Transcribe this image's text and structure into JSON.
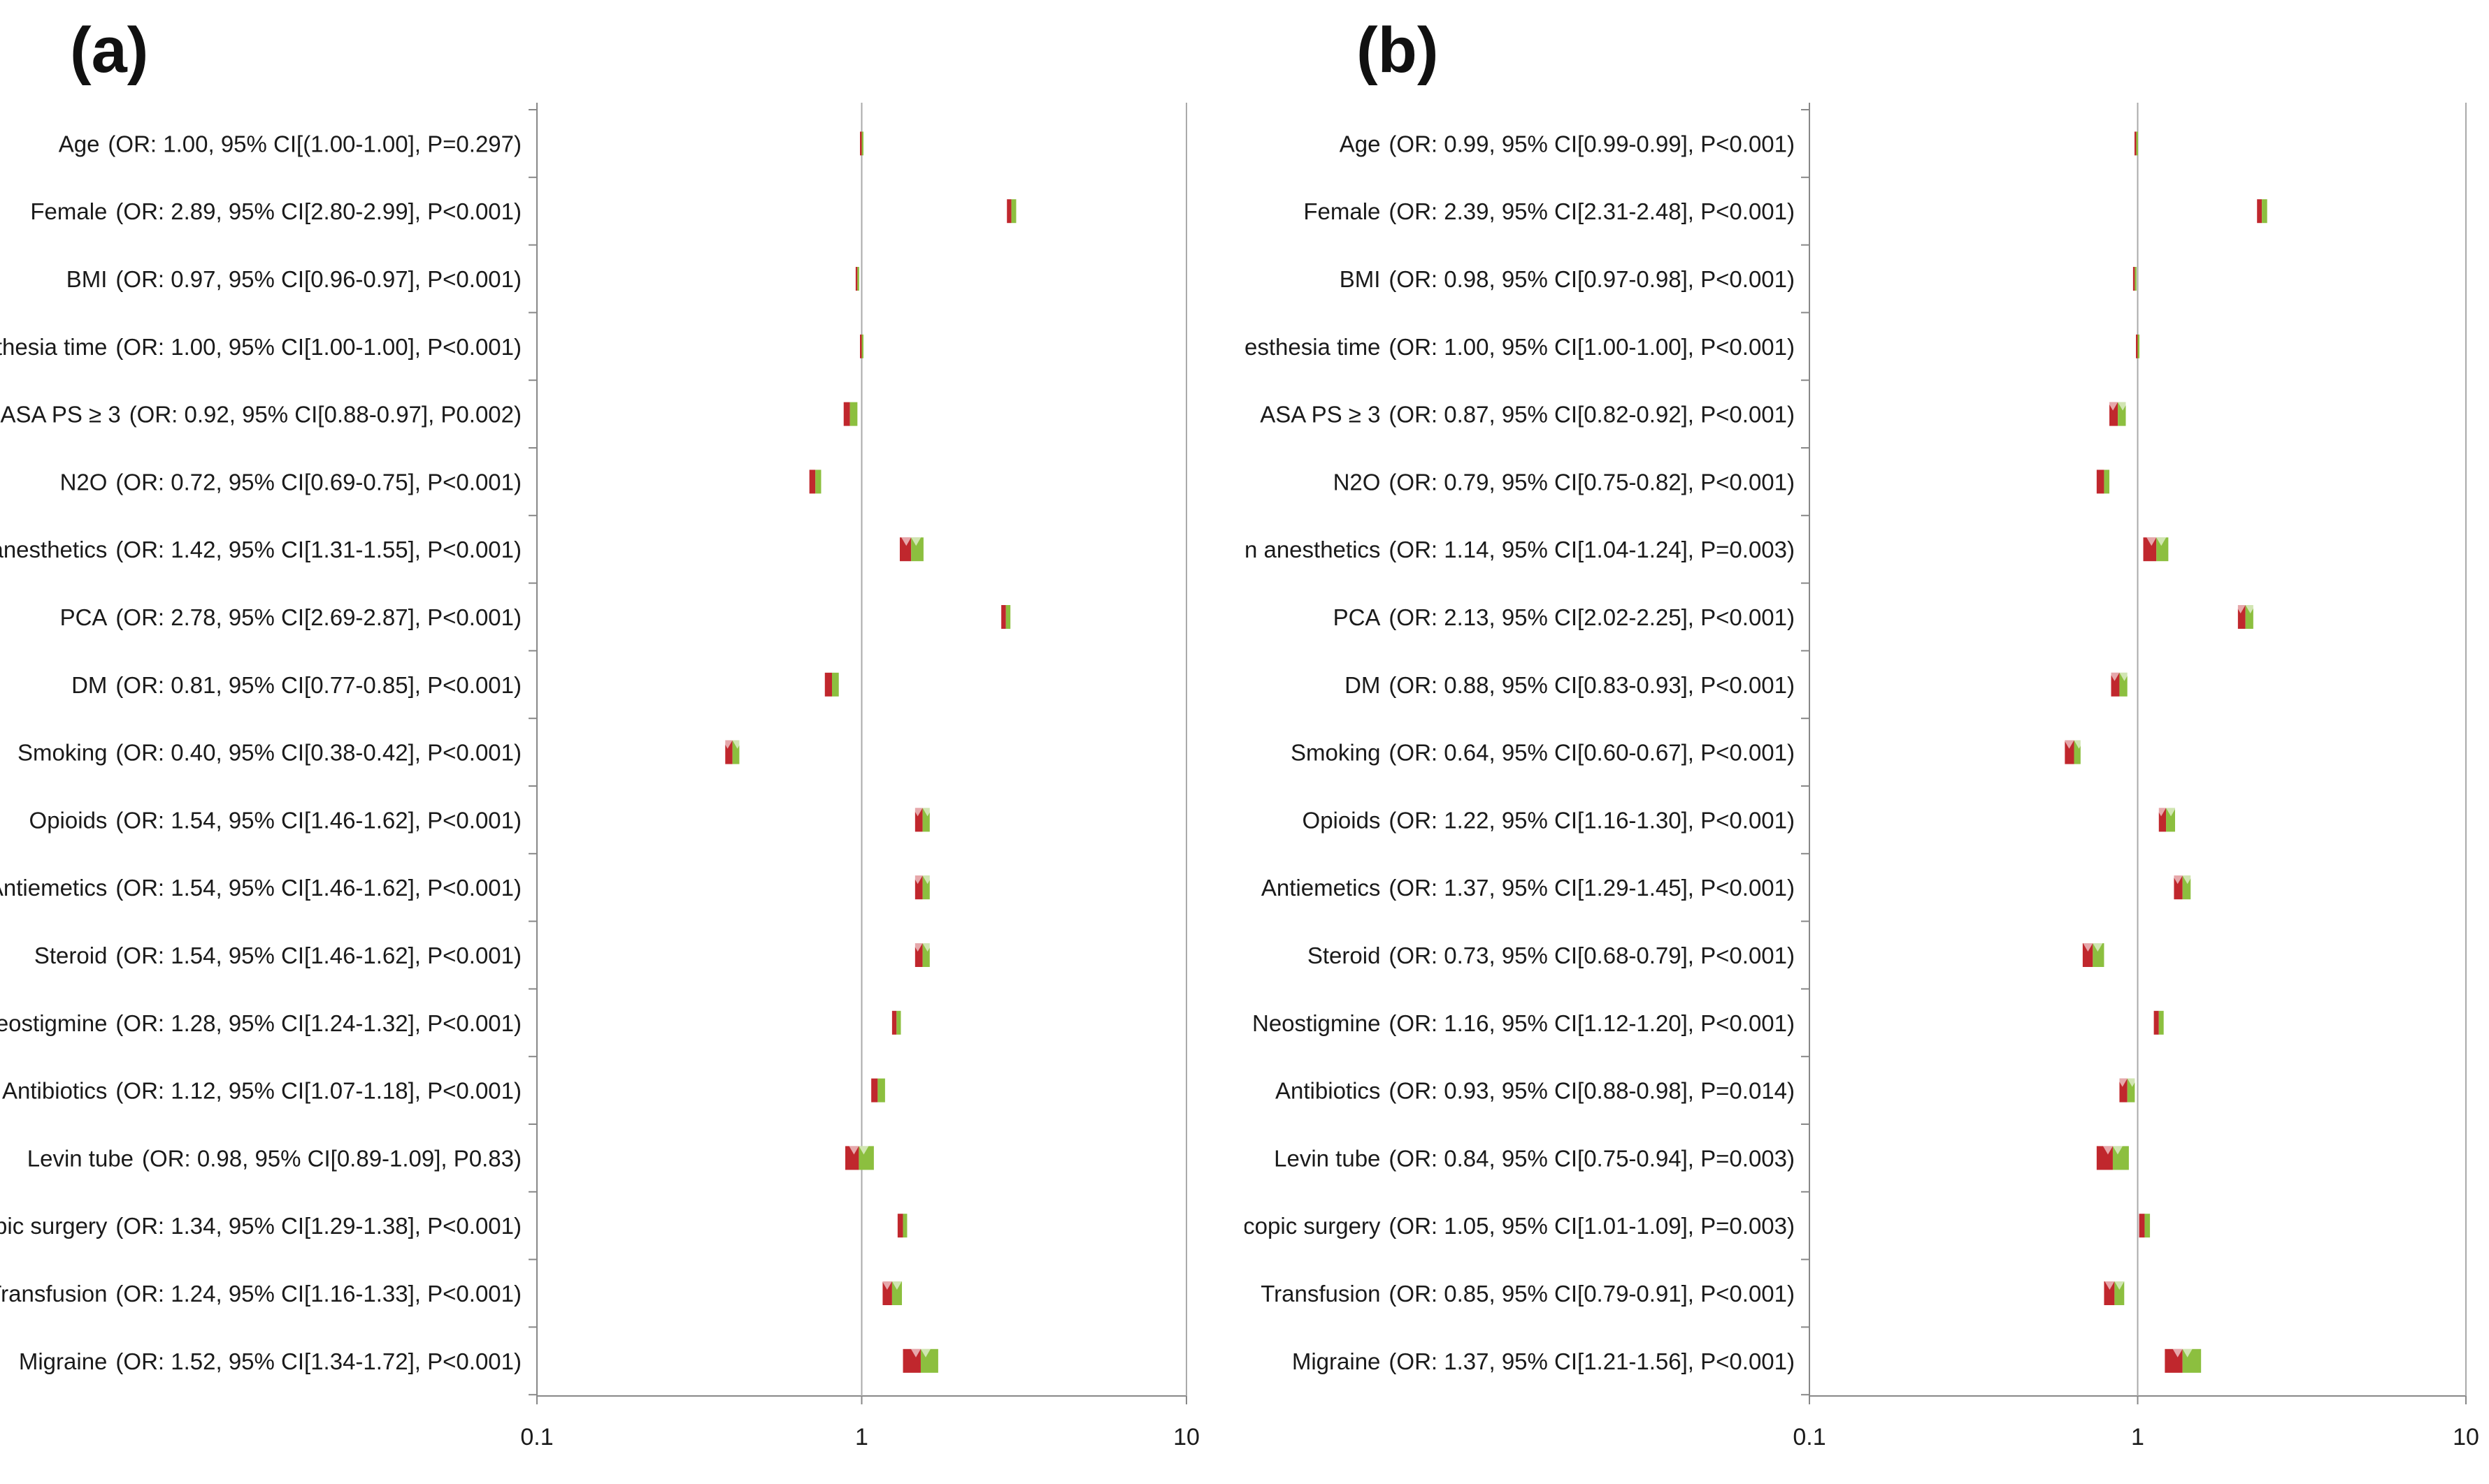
{
  "panels": [
    {
      "id": "a",
      "label": "(a)"
    },
    {
      "id": "b",
      "label": "(b)"
    }
  ],
  "chart_data": [
    {
      "type": "forest",
      "panel": "(a)",
      "x_scale": "log",
      "xlim": [
        0.1,
        10
      ],
      "x_ticks": [
        "0.1",
        "1",
        "10"
      ],
      "reference_line": 1,
      "rows": [
        {
          "label": "Age",
          "stats": "(OR: 1.00, 95% CI[(1.00-1.00], P=0.297)",
          "or": 1.0,
          "lo": 1.0,
          "hi": 1.0
        },
        {
          "label": "Female",
          "stats": "(OR: 2.89, 95% CI[2.80-2.99], P<0.001)",
          "or": 2.89,
          "lo": 2.8,
          "hi": 2.99
        },
        {
          "label": "BMI",
          "stats": "(OR: 0.97, 95% CI[0.96-0.97], P<0.001)",
          "or": 0.97,
          "lo": 0.96,
          "hi": 0.97
        },
        {
          "label": "Anesthesia time",
          "stats": "(OR: 1.00, 95% CI[1.00-1.00], P<0.001)",
          "or": 1.0,
          "lo": 1.0,
          "hi": 1.0
        },
        {
          "label": "ASA PS ≥ 3",
          "stats": "(OR: 0.92, 95% CI[0.88-0.97], P0.002)",
          "or": 0.92,
          "lo": 0.88,
          "hi": 0.97
        },
        {
          "label": "N2O",
          "stats": "(OR: 0.72, 95% CI[0.69-0.75], P<0.001)",
          "or": 0.72,
          "lo": 0.69,
          "hi": 0.75
        },
        {
          "label": "Inhalation anesthetics",
          "stats": "(OR: 1.42, 95% CI[1.31-1.55], P<0.001)",
          "or": 1.42,
          "lo": 1.31,
          "hi": 1.55
        },
        {
          "label": "PCA",
          "stats": "(OR: 2.78, 95% CI[2.69-2.87], P<0.001)",
          "or": 2.78,
          "lo": 2.69,
          "hi": 2.87
        },
        {
          "label": "DM",
          "stats": "(OR: 0.81, 95% CI[0.77-0.85], P<0.001)",
          "or": 0.81,
          "lo": 0.77,
          "hi": 0.85
        },
        {
          "label": "Smoking",
          "stats": "(OR: 0.40, 95% CI[0.38-0.42], P<0.001)",
          "or": 0.4,
          "lo": 0.38,
          "hi": 0.42
        },
        {
          "label": "Opioids",
          "stats": "(OR: 1.54, 95% CI[1.46-1.62], P<0.001)",
          "or": 1.54,
          "lo": 1.46,
          "hi": 1.62
        },
        {
          "label": "Antiemetics",
          "stats": "(OR: 1.54, 95% CI[1.46-1.62], P<0.001)",
          "or": 1.54,
          "lo": 1.46,
          "hi": 1.62
        },
        {
          "label": "Steroid",
          "stats": "(OR: 1.54, 95% CI[1.46-1.62], P<0.001)",
          "or": 1.54,
          "lo": 1.46,
          "hi": 1.62
        },
        {
          "label": "Neostigmine",
          "stats": "(OR: 1.28, 95% CI[1.24-1.32], P<0.001)",
          "or": 1.28,
          "lo": 1.24,
          "hi": 1.32
        },
        {
          "label": "Antibiotics",
          "stats": "(OR: 1.12, 95% CI[1.07-1.18], P<0.001)",
          "or": 1.12,
          "lo": 1.07,
          "hi": 1.18
        },
        {
          "label": "Levin tube",
          "stats": "(OR: 0.98, 95% CI[0.89-1.09], P0.83)",
          "or": 0.98,
          "lo": 0.89,
          "hi": 1.09
        },
        {
          "label": "Laparoscopic surgery",
          "stats": "(OR: 1.34, 95% CI[1.29-1.38], P<0.001)",
          "or": 1.34,
          "lo": 1.29,
          "hi": 1.38
        },
        {
          "label": "Transfusion",
          "stats": "(OR: 1.24, 95% CI[1.16-1.33], P<0.001)",
          "or": 1.24,
          "lo": 1.16,
          "hi": 1.33
        },
        {
          "label": "Migraine",
          "stats": "(OR: 1.52, 95% CI[1.34-1.72], P<0.001)",
          "or": 1.52,
          "lo": 1.34,
          "hi": 1.72
        }
      ]
    },
    {
      "type": "forest",
      "panel": "(b)",
      "x_scale": "log",
      "xlim": [
        0.1,
        10
      ],
      "x_ticks": [
        "0.1",
        "1",
        "10"
      ],
      "reference_line": 1,
      "rows": [
        {
          "label": "Age",
          "stats": "(OR: 0.99, 95% CI[0.99-0.99], P<0.001)",
          "or": 0.99,
          "lo": 0.99,
          "hi": 0.99
        },
        {
          "label": "Female",
          "stats": "(OR: 2.39, 95% CI[2.31-2.48], P<0.001)",
          "or": 2.39,
          "lo": 2.31,
          "hi": 2.48
        },
        {
          "label": "BMI",
          "stats": "(OR: 0.98, 95% CI[0.97-0.98], P<0.001)",
          "or": 0.98,
          "lo": 0.97,
          "hi": 0.98
        },
        {
          "label": "Anesthesia time",
          "stats": "(OR: 1.00, 95% CI[1.00-1.00], P<0.001)",
          "or": 1.0,
          "lo": 1.0,
          "hi": 1.0
        },
        {
          "label": "ASA PS ≥ 3",
          "stats": "(OR: 0.87, 95% CI[0.82-0.92], P<0.001)",
          "or": 0.87,
          "lo": 0.82,
          "hi": 0.92
        },
        {
          "label": "N2O",
          "stats": "(OR: 0.79, 95% CI[0.75-0.82], P<0.001)",
          "or": 0.79,
          "lo": 0.75,
          "hi": 0.82
        },
        {
          "label": "Inhalation anesthetics",
          "stats": "(OR: 1.14, 95% CI[1.04-1.24], P=0.003)",
          "or": 1.14,
          "lo": 1.04,
          "hi": 1.24
        },
        {
          "label": "PCA",
          "stats": "(OR: 2.13, 95% CI[2.02-2.25], P<0.001)",
          "or": 2.13,
          "lo": 2.02,
          "hi": 2.25
        },
        {
          "label": "DM",
          "stats": "(OR: 0.88, 95% CI[0.83-0.93], P<0.001)",
          "or": 0.88,
          "lo": 0.83,
          "hi": 0.93
        },
        {
          "label": "Smoking",
          "stats": "(OR: 0.64, 95% CI[0.60-0.67], P<0.001)",
          "or": 0.64,
          "lo": 0.6,
          "hi": 0.67
        },
        {
          "label": "Opioids",
          "stats": "(OR: 1.22, 95% CI[1.16-1.30], P<0.001)",
          "or": 1.22,
          "lo": 1.16,
          "hi": 1.3
        },
        {
          "label": "Antiemetics",
          "stats": "(OR: 1.37, 95% CI[1.29-1.45], P<0.001)",
          "or": 1.37,
          "lo": 1.29,
          "hi": 1.45
        },
        {
          "label": "Steroid",
          "stats": "(OR: 0.73, 95% CI[0.68-0.79], P<0.001)",
          "or": 0.73,
          "lo": 0.68,
          "hi": 0.79
        },
        {
          "label": "Neostigmine",
          "stats": "(OR: 1.16, 95% CI[1.12-1.20], P<0.001)",
          "or": 1.16,
          "lo": 1.12,
          "hi": 1.2
        },
        {
          "label": "Antibiotics",
          "stats": "(OR: 0.93, 95% CI[0.88-0.98], P=0.014)",
          "or": 0.93,
          "lo": 0.88,
          "hi": 0.98
        },
        {
          "label": "Levin tube",
          "stats": "(OR: 0.84, 95% CI[0.75-0.94], P=0.003)",
          "or": 0.84,
          "lo": 0.75,
          "hi": 0.94
        },
        {
          "label": "Laparoscopic surgery",
          "stats": "(OR: 1.05, 95% CI[1.01-1.09], P=0.003)",
          "or": 1.05,
          "lo": 1.01,
          "hi": 1.09
        },
        {
          "label": "Transfusion",
          "stats": "(OR: 0.85, 95% CI[0.79-0.91], P<0.001)",
          "or": 0.85,
          "lo": 0.79,
          "hi": 0.91
        },
        {
          "label": "Migraine",
          "stats": "(OR: 1.37, 95% CI[1.21-1.56], P<0.001)",
          "or": 1.37,
          "lo": 1.21,
          "hi": 1.56
        }
      ]
    }
  ],
  "colors": {
    "lower_box": "#c0272d",
    "upper_box": "#8cbf3f",
    "axis": "#888888",
    "reference_line": "#aaaaaa",
    "text": "#1a1a1a"
  }
}
